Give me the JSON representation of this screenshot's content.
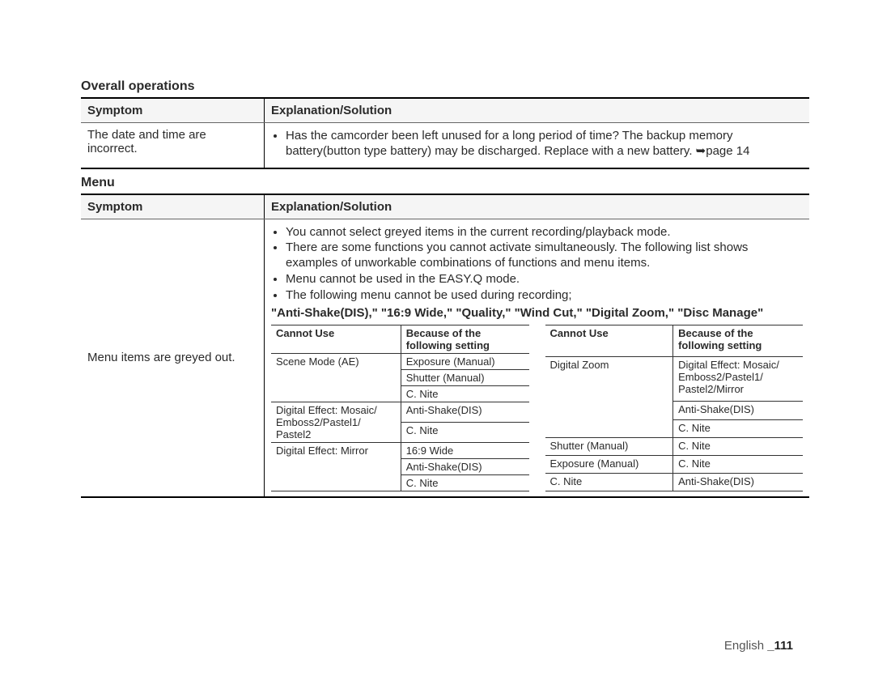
{
  "sections": {
    "overall": {
      "title": "Overall operations",
      "header": {
        "c1": "Symptom",
        "c2": "Explanation/Solution"
      },
      "row": {
        "symptom": "The date and time are incorrect.",
        "bullets": [
          "Has the camcorder been left unused for a long period of time? The backup memory battery(button type battery) may be discharged. Replace with a new battery. ➥page 14"
        ]
      }
    },
    "menu": {
      "title": "Menu",
      "header": {
        "c1": "Symptom",
        "c2": "Explanation/Solution"
      },
      "row": {
        "symptom": "Menu items are greyed out.",
        "bullets": [
          "You cannot select greyed items in the current recording/playback mode.",
          "There are some functions you cannot activate simultaneously. The following list shows examples of unworkable combinations of functions and menu items.",
          "Menu cannot be used in the EASY.Q mode.",
          "The following menu cannot be used during recording;"
        ],
        "boldline": "\"Anti-Shake(DIS),\" \"16:9 Wide,\" \"Quality,\" \"Wind Cut,\" \"Digital Zoom,\" \"Disc Manage\""
      },
      "innerLeft": {
        "h1": "Cannot Use",
        "h2": "Because of the following setting",
        "rows": [
          {
            "c1": "Scene Mode (AE)",
            "c1_rowspan": 3,
            "c2": "Exposure (Manual)"
          },
          {
            "c2": "Shutter (Manual)"
          },
          {
            "c2": "C. Nite"
          },
          {
            "c1": "Digital Effect: Mosaic/ Emboss2/Pastel1/ Pastel2",
            "c1_rowspan": 2,
            "c2": "Anti-Shake(DIS)"
          },
          {
            "c2": "C. Nite"
          },
          {
            "c1": "Digital Effect: Mirror",
            "c1_rowspan": 3,
            "c2": "16:9 Wide"
          },
          {
            "c2": "Anti-Shake(DIS)"
          },
          {
            "c2": "C. Nite"
          }
        ]
      },
      "innerRight": {
        "h1": "Cannot Use",
        "h2": "Because of the following setting",
        "rows": [
          {
            "c1": "Digital Zoom",
            "c1_rowspan": 3,
            "c2": "Digital Effect: Mosaic/ Emboss2/Pastel1/ Pastel2/Mirror"
          },
          {
            "c2": "Anti-Shake(DIS)"
          },
          {
            "c2": "C. Nite"
          },
          {
            "c1": "Shutter (Manual)",
            "c2": "C. Nite"
          },
          {
            "c1": "Exposure (Manual)",
            "c2": "C. Nite"
          },
          {
            "c1": "C. Nite",
            "c2": "Anti-Shake(DIS)"
          }
        ]
      }
    }
  },
  "footer": {
    "lang": "English",
    "page": "_111"
  }
}
